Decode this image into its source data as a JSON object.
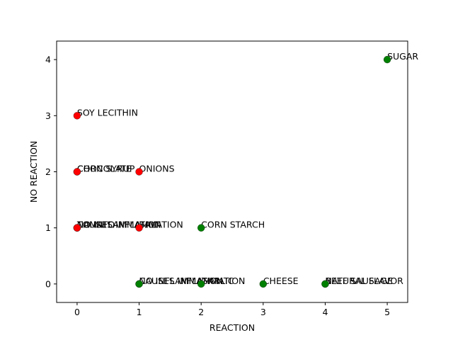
{
  "chart_data": {
    "type": "scatter",
    "title": "",
    "xlabel": "REACTION",
    "ylabel": "NO REACTION",
    "xlim": [
      -0.33,
      5.33
    ],
    "ylim": [
      -0.33,
      4.33
    ],
    "xticks": [
      0,
      1,
      2,
      3,
      4,
      5
    ],
    "yticks": [
      0,
      1,
      2,
      3,
      4
    ],
    "grid": false,
    "legend": "none",
    "colors": {
      "red": "#ff0000",
      "green": "#008000",
      "edge": "#000000"
    },
    "points": [
      {
        "x": 5,
        "y": 4,
        "color": "green",
        "label": "SUGAR"
      },
      {
        "x": 0,
        "y": 3,
        "color": "red",
        "label": "SOY LECITHIN"
      },
      {
        "x": 0,
        "y": 2,
        "color": "red",
        "label": "CHOCOLATE"
      },
      {
        "x": 0,
        "y": 2,
        "color": "red",
        "label": "CORN SYRUP"
      },
      {
        "x": 1,
        "y": 2,
        "color": "red",
        "label": "ONIONS"
      },
      {
        "x": 0,
        "y": 1,
        "color": "red",
        "label": "NO INFLAMMATION"
      },
      {
        "x": 0,
        "y": 1,
        "color": "red",
        "label": "CAUSES INFLAMMATION"
      },
      {
        "x": 0,
        "y": 1,
        "color": "red",
        "label": "TOMATO"
      },
      {
        "x": 1,
        "y": 1,
        "color": "red",
        "label": "SALT"
      },
      {
        "x": 2,
        "y": 1,
        "color": "green",
        "label": "CORN STARCH"
      },
      {
        "x": 1,
        "y": 0,
        "color": "green",
        "label": "NO INFLAMMATION"
      },
      {
        "x": 1,
        "y": 0,
        "color": "green",
        "label": "CAUSES INFLAMMATION"
      },
      {
        "x": 2,
        "y": 0,
        "color": "green",
        "label": "GARLIC"
      },
      {
        "x": 3,
        "y": 0,
        "color": "green",
        "label": "CHEESE"
      },
      {
        "x": 4,
        "y": 0,
        "color": "green",
        "label": "BEEF SAUSAGE"
      },
      {
        "x": 4,
        "y": 0,
        "color": "green",
        "label": "NATURAL FLAVOR"
      }
    ]
  }
}
